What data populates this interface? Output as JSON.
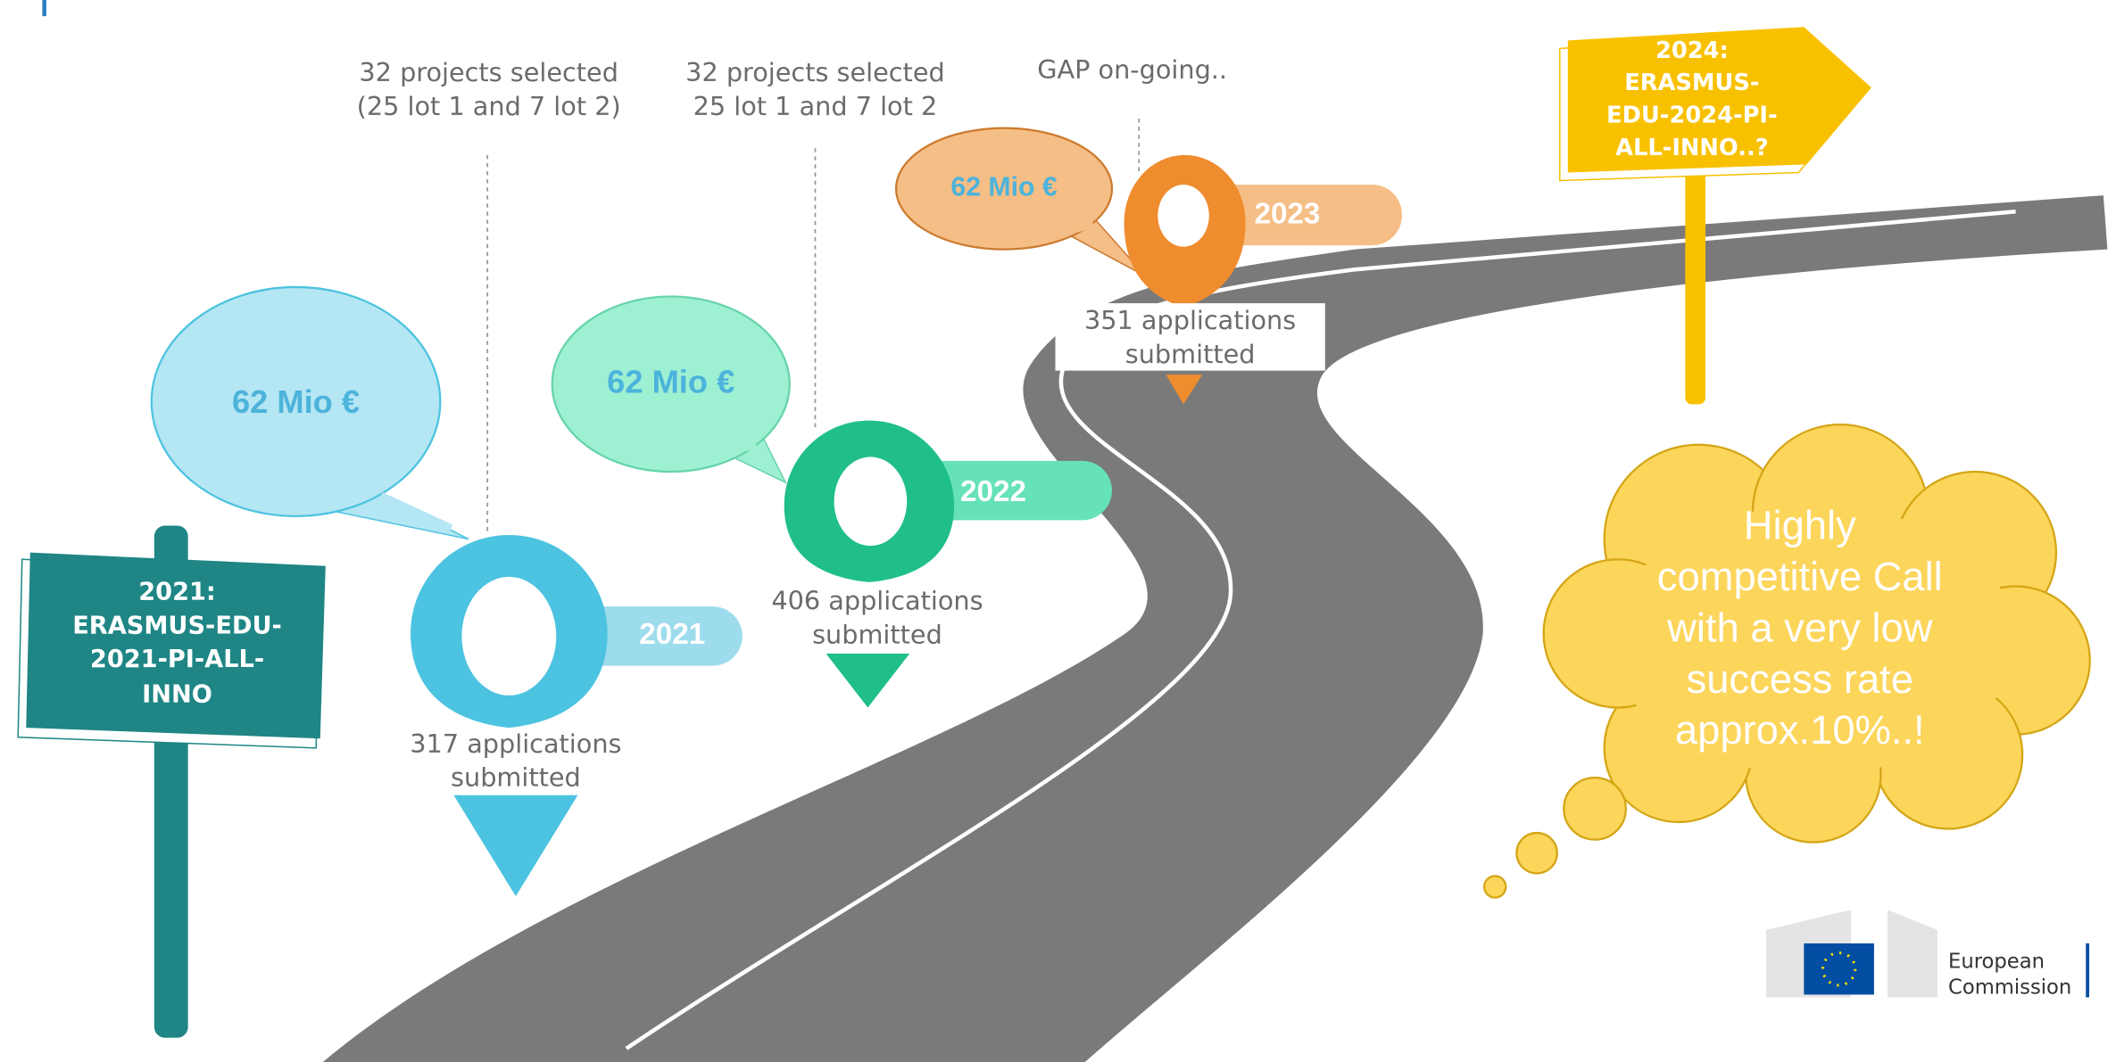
{
  "start_sign": {
    "lines": [
      "2021:",
      "ERASMUS-EDU-",
      "2021-PI-ALL-",
      "INNO"
    ]
  },
  "milestones": [
    {
      "year": "2021",
      "budget": "62 Mio €",
      "applications": [
        "317 applications",
        "submitted"
      ],
      "result": [
        "32 projects selected",
        "(25 lot 1 and 7 lot 2)"
      ]
    },
    {
      "year": "2022",
      "budget": "62 Mio €",
      "applications": [
        "406 applications",
        "submitted"
      ],
      "result": [
        "32 projects selected",
        "25 lot 1 and 7 lot 2"
      ]
    },
    {
      "year": "2023",
      "budget": "62 Mio €",
      "applications": [
        "351 applications",
        "submitted"
      ],
      "result": [
        "GAP on-going.."
      ]
    }
  ],
  "end_sign": {
    "lines": [
      "2024:",
      "ERASMUS-",
      "EDU-2024-PI-",
      "ALL-INNO..?"
    ]
  },
  "thought": {
    "lines": [
      "Highly",
      "competitive Call",
      "with a very low",
      "success rate",
      "approx.10%..!"
    ]
  },
  "logo": {
    "lines": [
      "European",
      "Commission"
    ]
  }
}
